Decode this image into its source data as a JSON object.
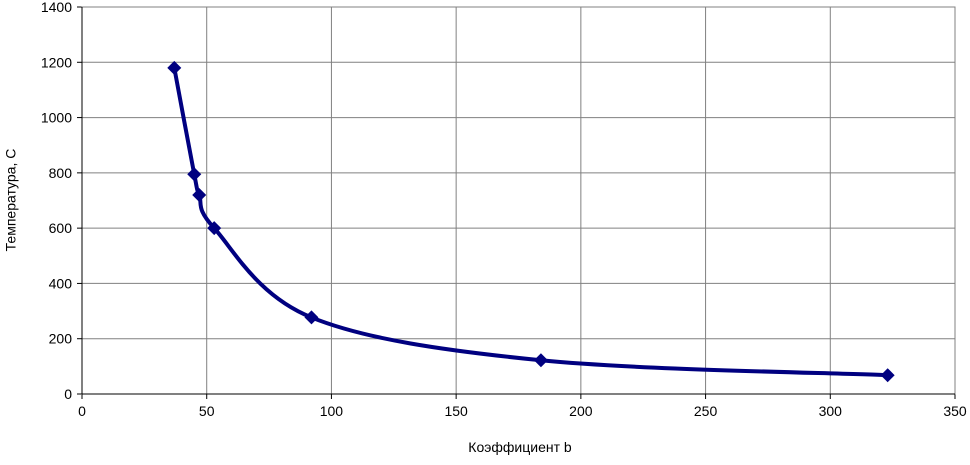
{
  "chart_data": {
    "type": "line",
    "x_label": "Коэффициент b",
    "y_label": "Температура, С",
    "x": [
      37,
      45,
      47,
      53,
      92,
      184,
      323
    ],
    "series": [
      {
        "color": "#000080",
        "values": [
          1180,
          795,
          720,
          600,
          277,
          122,
          68
        ]
      }
    ],
    "xlim": [
      0,
      350
    ],
    "xticks": [
      0,
      50,
      100,
      150,
      200,
      250,
      300,
      350
    ],
    "ylim": [
      0,
      1400
    ],
    "yticks": [
      0,
      200,
      400,
      600,
      800,
      1000,
      1200,
      1400
    ],
    "grid": true,
    "smooth": true,
    "marker": "diamond"
  }
}
